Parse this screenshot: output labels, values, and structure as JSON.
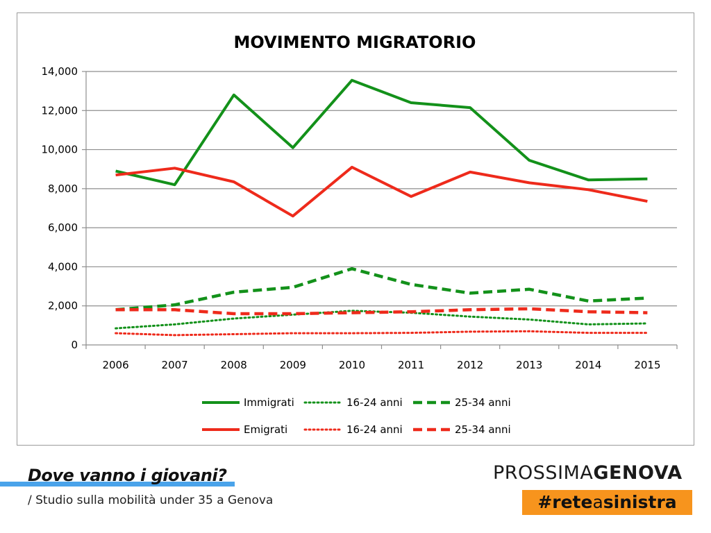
{
  "chart_data": {
    "type": "line",
    "title": "MOVIMENTO MIGRATORIO",
    "xlabel": "",
    "ylabel": "",
    "categories": [
      "2006",
      "2007",
      "2008",
      "2009",
      "2010",
      "2011",
      "2012",
      "2013",
      "2014",
      "2015"
    ],
    "y_tick_labels": [
      "0",
      "2,000",
      "4,000",
      "6,000",
      "8,000",
      "10,000",
      "12,000",
      "14,000"
    ],
    "ylim": [
      0,
      14000
    ],
    "y_step": 2000,
    "grid": true,
    "legend_position": "bottom",
    "series": [
      {
        "name": "Immigrati",
        "color": "#13911a",
        "style": "solid",
        "values": [
          8900,
          8200,
          12800,
          10100,
          13550,
          12400,
          12150,
          9450,
          8450,
          8500
        ]
      },
      {
        "name": "16-24 anni",
        "color": "#13911a",
        "style": "dotted",
        "values": [
          850,
          1050,
          1350,
          1550,
          1750,
          1650,
          1450,
          1300,
          1050,
          1100
        ]
      },
      {
        "name": "25-34 anni",
        "color": "#13911a",
        "style": "dashed",
        "values": [
          1800,
          2050,
          2700,
          2950,
          3900,
          3100,
          2650,
          2850,
          2250,
          2400
        ]
      },
      {
        "name": "Emigrati",
        "color": "#ee2a1b",
        "style": "solid",
        "values": [
          8700,
          9050,
          8350,
          6600,
          9100,
          7600,
          8850,
          8300,
          7950,
          7350
        ]
      },
      {
        "name": "16-24 anni",
        "color": "#ee2a1b",
        "style": "dotted",
        "values": [
          600,
          500,
          550,
          600,
          600,
          620,
          680,
          700,
          620,
          620
        ]
      },
      {
        "name": "25-34 anni",
        "color": "#ee2a1b",
        "style": "dashed",
        "values": [
          1800,
          1800,
          1600,
          1600,
          1650,
          1700,
          1800,
          1850,
          1700,
          1650
        ]
      }
    ]
  },
  "footer": {
    "title": "Dove vanno i giovani?",
    "subtitle": "/ Studio sulla mobilità under 35 a Genova",
    "accent_color": "#4aa3ea"
  },
  "brand": {
    "logo_light": "PROSSIMA",
    "logo_bold": "GENOVA",
    "hashtag_prefix": "#rete",
    "hashtag_mid": "a",
    "hashtag_suffix": "sinistra",
    "badge_color": "#f7941d"
  }
}
